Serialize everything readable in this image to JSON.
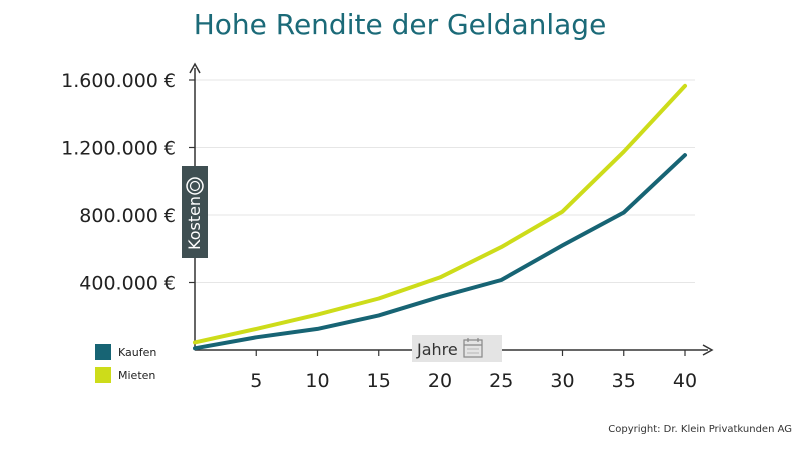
{
  "chart_data": {
    "type": "line",
    "title": "Hohe Rendite der Geldanlage",
    "xlabel": "Jahre",
    "ylabel": "Kosten",
    "x": [
      0,
      5,
      10,
      15,
      20,
      25,
      30,
      35,
      40
    ],
    "x_tick_labels": [
      "5",
      "10",
      "15",
      "20",
      "25",
      "30",
      "35",
      "40"
    ],
    "y_tick_labels": [
      "400.000 €",
      "800.000 €",
      "1.200.000 €",
      "1.600.000 €"
    ],
    "xlim": [
      0,
      40
    ],
    "ylim": [
      0,
      1600000
    ],
    "grid": "horizontal",
    "legend_position": "bottom-left",
    "series": [
      {
        "name": "Kaufen",
        "color": "#176474",
        "values": [
          10000,
          75000,
          125000,
          205000,
          315000,
          415000,
          620000,
          815000,
          1155000
        ]
      },
      {
        "name": "Mieten",
        "color": "#cddc1a",
        "values": [
          45000,
          125000,
          210000,
          305000,
          430000,
          610000,
          820000,
          1175000,
          1565000
        ]
      }
    ]
  },
  "copyright": "Copyright: Dr. Klein Privatkunden AG"
}
